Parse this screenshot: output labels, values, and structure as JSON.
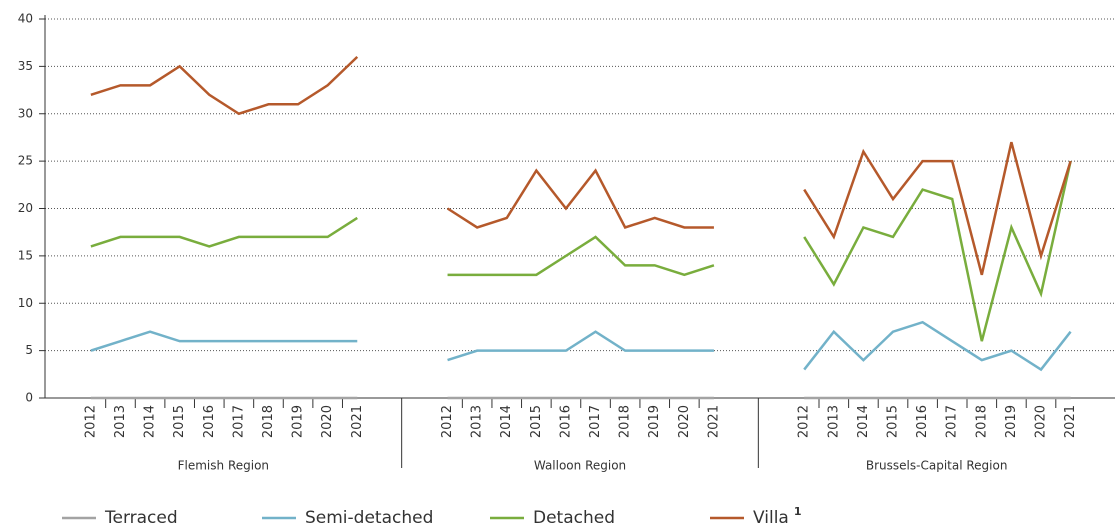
{
  "chart_data": {
    "type": "line",
    "groups": [
      {
        "label": "Flemish Region",
        "categories": [
          "2012",
          "2013",
          "2014",
          "2015",
          "2016",
          "2017",
          "2018",
          "2019",
          "2020",
          "2021"
        ]
      },
      {
        "label": "Walloon Region",
        "categories": [
          "2012",
          "2013",
          "2014",
          "2015",
          "2016",
          "2017",
          "2018",
          "2019",
          "2020",
          "2021"
        ]
      },
      {
        "label": "Brussels-Capital Region",
        "categories": [
          "2012",
          "2013",
          "2014",
          "2015",
          "2016",
          "2017",
          "2018",
          "2019",
          "2020",
          "2021"
        ]
      }
    ],
    "series": [
      {
        "name": "Terraced",
        "color": "#a3a3a3",
        "values": [
          [
            0,
            0,
            0,
            0,
            0,
            0,
            0,
            0,
            0,
            0
          ],
          [
            0,
            0,
            0,
            0,
            0,
            0,
            0,
            0,
            0,
            0
          ],
          [
            0,
            0,
            0,
            0,
            0,
            0,
            0,
            0,
            0,
            0
          ]
        ]
      },
      {
        "name": "Semi-detached",
        "color": "#72b2c9",
        "values": [
          [
            5,
            6,
            7,
            6,
            6,
            6,
            6,
            6,
            6,
            6
          ],
          [
            4,
            5,
            5,
            5,
            5,
            7,
            5,
            5,
            5,
            5
          ],
          [
            3,
            7,
            4,
            7,
            8,
            6,
            4,
            5,
            3,
            7
          ]
        ]
      },
      {
        "name": "Detached",
        "color": "#79ad3d",
        "values": [
          [
            16,
            17,
            17,
            17,
            16,
            17,
            17,
            17,
            17,
            19
          ],
          [
            13,
            13,
            13,
            13,
            15,
            17,
            14,
            14,
            13,
            14
          ],
          [
            17,
            12,
            18,
            17,
            22,
            21,
            6,
            18,
            11,
            25
          ]
        ]
      },
      {
        "name": "Villa",
        "footnote": "1",
        "color": "#b5592b",
        "values": [
          [
            32,
            33,
            33,
            35,
            32,
            30,
            31,
            31,
            33,
            36
          ],
          [
            20,
            18,
            19,
            24,
            20,
            24,
            18,
            19,
            18,
            18
          ],
          [
            22,
            17,
            26,
            21,
            25,
            25,
            13,
            27,
            15,
            25
          ]
        ]
      }
    ],
    "ylim": [
      0,
      40
    ],
    "yticks": [
      0,
      5,
      10,
      15,
      20,
      25,
      30,
      35,
      40
    ],
    "grid": true
  }
}
